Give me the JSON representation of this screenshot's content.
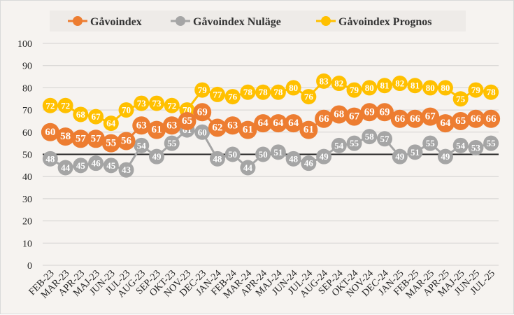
{
  "chart_data": {
    "type": "line",
    "title": "",
    "xlabel": "",
    "ylabel": "",
    "ylim": [
      0,
      100
    ],
    "yticks": [
      0,
      10,
      20,
      30,
      40,
      50,
      60,
      70,
      80,
      90,
      100
    ],
    "grid": true,
    "legend_position": "top",
    "reference_line": 50,
    "categories": [
      "FEB-23",
      "MAR-23",
      "APR-23",
      "MAJ-23",
      "JUN-23",
      "JUL-23",
      "AUG-23",
      "SEP-23",
      "OKT-23",
      "NOV-23",
      "DEC-23",
      "JAN-24",
      "FEB-24",
      "MAR-24",
      "APR-24",
      "MAJ-24",
      "JUN-24",
      "JUL-24",
      "AUG-24",
      "SEP-24",
      "OKT-24",
      "NOV-24",
      "DEC-24",
      "JAN-25",
      "FEB-25",
      "MAR-25",
      "APR-25",
      "MAJ-25",
      "JUN-25",
      "JUL-25"
    ],
    "series": [
      {
        "name": "Gåvoindex",
        "color": "#ed7d31",
        "values": [
          60,
          58,
          57,
          57,
          55,
          56,
          63,
          61,
          63,
          65,
          69,
          62,
          63,
          61,
          64,
          64,
          64,
          61,
          66,
          68,
          67,
          69,
          69,
          66,
          66,
          67,
          64,
          65,
          66,
          66
        ]
      },
      {
        "name": "Gåvoindex Nuläge",
        "color": "#a5a5a5",
        "values": [
          48,
          44,
          45,
          46,
          45,
          43,
          54,
          49,
          55,
          61,
          60,
          48,
          50,
          44,
          50,
          51,
          48,
          46,
          49,
          54,
          55,
          58,
          57,
          49,
          51,
          55,
          49,
          54,
          53,
          55
        ]
      },
      {
        "name": "Gåvoindex Prognos",
        "color": "#ffc000",
        "values": [
          72,
          72,
          68,
          67,
          64,
          70,
          73,
          73,
          72,
          70,
          79,
          77,
          76,
          78,
          78,
          78,
          80,
          76,
          83,
          82,
          79,
          80,
          81,
          82,
          81,
          80,
          80,
          75,
          79,
          78
        ]
      }
    ]
  }
}
